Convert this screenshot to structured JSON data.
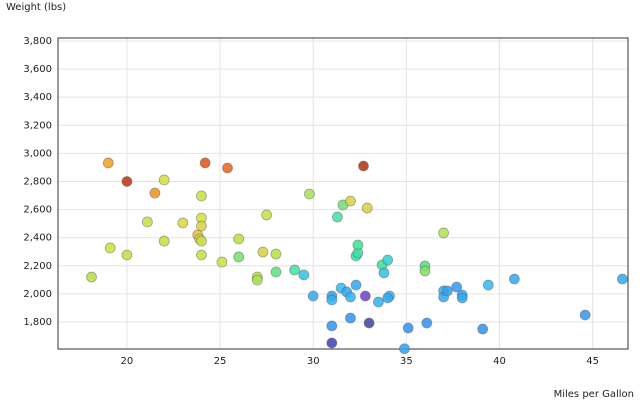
{
  "chart_data": {
    "type": "scatter",
    "x_label": "Miles per Gallon",
    "y_label": "Weight (lbs)",
    "x": [
      18.1,
      19.0,
      19.1,
      20.0,
      20.0,
      21.1,
      21.5,
      22.0,
      22.0,
      23.0,
      23.8,
      23.9,
      24.0,
      24.0,
      24.0,
      24.0,
      24.0,
      24.2,
      25.1,
      25.4,
      26.0,
      26.0,
      27.0,
      27.0,
      27.3,
      27.5,
      28.0,
      28.0,
      29.0,
      29.5,
      29.8,
      30.0,
      31.0,
      31.0,
      31.0,
      31.0,
      31.3,
      31.5,
      31.6,
      31.8,
      32.0,
      32.0,
      32.0,
      32.3,
      32.3,
      32.4,
      32.4,
      32.7,
      32.8,
      32.9,
      33.0,
      33.5,
      33.7,
      33.8,
      34.0,
      34.1,
      34.0,
      34.9,
      35.1,
      36.0,
      36.0,
      36.1,
      37.0,
      37.0,
      37.0,
      37.2,
      37.7,
      38.0,
      38.0,
      39.1,
      39.4,
      40.8,
      44.6,
      46.6
    ],
    "y": [
      2120,
      2932,
      2327,
      2800,
      2277,
      2512,
      2718,
      2811,
      2376,
      2505,
      2420,
      2391,
      2697,
      2540,
      2483,
      2376,
      2277,
      2932,
      2227,
      2896,
      2391,
      2263,
      2120,
      2099,
      2298,
      2562,
      2284,
      2156,
      2170,
      2135,
      2711,
      1985,
      1985,
      1957,
      1772,
      1651,
      2547,
      2042,
      2633,
      2014,
      2661,
      1978,
      1828,
      2063,
      2270,
      2291,
      2348,
      2910,
      1985,
      2611,
      1793,
      1942,
      2206,
      2149,
      2241,
      1985,
      1971,
      1610,
      1757,
      2199,
      2163,
      1793,
      2434,
      2021,
      1978,
      2021,
      2049,
      1992,
      1971,
      1750,
      2063,
      2106,
      1850,
      2106
    ],
    "colors": [
      "#b5e03a",
      "#f0a020",
      "#c8e040",
      "#c03010",
      "#b8e040",
      "#c8e040",
      "#f09020",
      "#d0e040",
      "#c0e040",
      "#d8d840",
      "#e0c040",
      "#d8d040",
      "#c8e040",
      "#d0e040",
      "#d8d040",
      "#c8e040",
      "#c0e040",
      "#e05018",
      "#c8e040",
      "#e86020",
      "#b8e040",
      "#70e070",
      "#b8e040",
      "#a8e050",
      "#d8d040",
      "#c8e040",
      "#b8e040",
      "#60e080",
      "#40e0a0",
      "#30c0e0",
      "#a8e050",
      "#30a8f0",
      "#30a0f0",
      "#30b0f0",
      "#3090f0",
      "#4040b0",
      "#40e0a0",
      "#30b8f0",
      "#70e070",
      "#30a8f0",
      "#d8d040",
      "#30b0f0",
      "#3090f0",
      "#30a8f0",
      "#30e0b0",
      "#40e0a0",
      "#40e090",
      "#b03010",
      "#7040d0",
      "#d8d040",
      "#4040a0",
      "#30b0f0",
      "#40e090",
      "#30c0e0",
      "#30d0d0",
      "#30b8f0",
      "#30a8f0",
      "#30a0f0",
      "#3090f0",
      "#50e080",
      "#80e060",
      "#3090f0",
      "#b0e050",
      "#30b0f0",
      "#30a8f0",
      "#30a0f0",
      "#3098f0",
      "#30a8f0",
      "#30a8f0",
      "#3090f0",
      "#30b8f0",
      "#30a8f0",
      "#3098f0",
      "#30a8f0"
    ],
    "xlim": [
      16.3,
      46.9
    ],
    "ylim": [
      1608,
      3821
    ],
    "xticks": [
      20,
      25,
      30,
      35,
      40,
      45
    ],
    "yticks": [
      {
        "value": 1800,
        "label": "1,800"
      },
      {
        "value": 2000,
        "label": "2,000"
      },
      {
        "value": 2200,
        "label": "2,200"
      },
      {
        "value": 2400,
        "label": "2,400"
      },
      {
        "value": 2600,
        "label": "2,600"
      },
      {
        "value": 2800,
        "label": "2,800"
      },
      {
        "value": 3000,
        "label": "3,000"
      },
      {
        "value": 3200,
        "label": "3,200"
      },
      {
        "value": 3400,
        "label": "3,400"
      },
      {
        "value": 3600,
        "label": "3,600"
      },
      {
        "value": 3800,
        "label": "3,800"
      }
    ],
    "grid": true
  }
}
